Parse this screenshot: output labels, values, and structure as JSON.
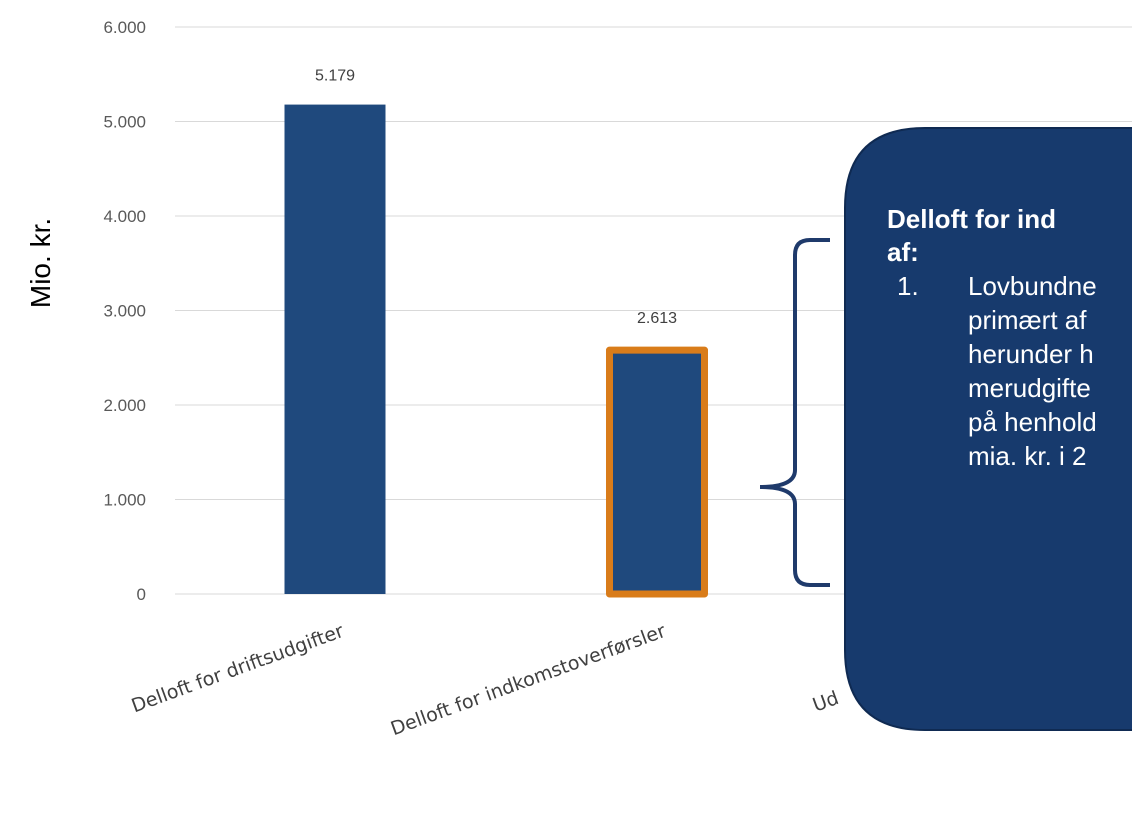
{
  "chart_data": {
    "type": "bar",
    "ylabel": "Mio. kr.",
    "ylim": [
      0,
      6000
    ],
    "yticks": [
      "0",
      "1.000",
      "2.000",
      "3.000",
      "4.000",
      "5.000",
      "6.000"
    ],
    "grid": true,
    "categories": [
      "Delloft for driftsudgifter",
      "Delloft for indkomstoverførsler",
      "Ud"
    ],
    "values": [
      5179,
      2613,
      null
    ],
    "data_labels": [
      "5.179",
      "2.613",
      ""
    ],
    "highlight_index": 1,
    "colors": {
      "bar": "#1f497d",
      "highlight_border": "#d97c1a",
      "grid": "#d9d9d9",
      "callout": "#173a6d"
    }
  },
  "callout": {
    "heading_lines": [
      "Delloft for ind",
      "af:"
    ],
    "list_number": "1.",
    "body_lines": [
      "Lovbundne",
      "primært af",
      "herunder h",
      "merudgifte",
      "på henhold",
      "mia. kr. i 2"
    ]
  }
}
